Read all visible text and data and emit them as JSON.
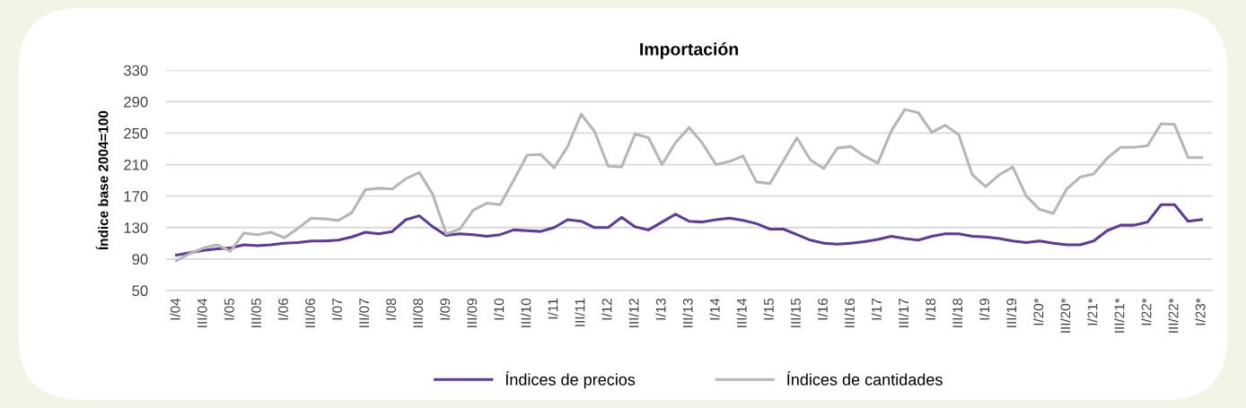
{
  "chart_data": {
    "type": "line",
    "title": "Importación",
    "ylabel": "Índice base 2004=100",
    "categories": [
      "I/04",
      null,
      "III/04",
      null,
      "I/05",
      null,
      "III/05",
      null,
      "I/06",
      null,
      "III/06",
      null,
      "I/07",
      null,
      "III/07",
      null,
      "I/08",
      null,
      "III/08",
      null,
      "I/09",
      null,
      "III/09",
      null,
      "I/10",
      null,
      "III/10",
      null,
      "I/11",
      null,
      "III/11",
      null,
      "I/12",
      null,
      "III/12",
      null,
      "I/13",
      null,
      "III/13",
      null,
      "I/14",
      null,
      "III/14",
      null,
      "I/15",
      null,
      "III/15",
      null,
      "I/16",
      null,
      "III/16",
      null,
      "I/17",
      null,
      "III/17",
      null,
      "I/18",
      null,
      "III/18",
      null,
      "I/19",
      null,
      "III/19",
      null,
      "I/20*",
      null,
      "III/20*",
      null,
      "I/21*",
      null,
      "III/21*",
      null,
      "I/22*",
      null,
      "III/22*",
      null,
      "I/23*"
    ],
    "series": [
      {
        "name": "Índices de precios",
        "color": "#5c3b99",
        "values": [
          95,
          98,
          101,
          103,
          104,
          108,
          107,
          108,
          110,
          111,
          113,
          113,
          114,
          118,
          124,
          122,
          125,
          140,
          145,
          131,
          120,
          122,
          121,
          119,
          121,
          127,
          126,
          125,
          130,
          140,
          138,
          130,
          130,
          143,
          131,
          127,
          137,
          147,
          138,
          137,
          140,
          142,
          139,
          135,
          128,
          128,
          121,
          114,
          110,
          109,
          110,
          112,
          115,
          119,
          116,
          114,
          119,
          122,
          122,
          119,
          118,
          116,
          113,
          111,
          113,
          110,
          108,
          108,
          113,
          126,
          133,
          133,
          137,
          159,
          159,
          138,
          140
        ]
      },
      {
        "name": "Índices de cantidades",
        "color": "#b5b7b6",
        "values": [
          88,
          97,
          104,
          108,
          100,
          123,
          121,
          124,
          117,
          129,
          142,
          141,
          139,
          149,
          178,
          180,
          179,
          192,
          200,
          172,
          122,
          128,
          152,
          161,
          159,
          190,
          222,
          223,
          206,
          233,
          274,
          252,
          208,
          207,
          249,
          244,
          210,
          238,
          257,
          237,
          210,
          214,
          221,
          188,
          186,
          215,
          244,
          216,
          205,
          231,
          233,
          221,
          212,
          253,
          280,
          276,
          251,
          260,
          248,
          197,
          182,
          197,
          207,
          170,
          153,
          148,
          179,
          194,
          198,
          218,
          232,
          232,
          234,
          262,
          261,
          219,
          219
        ]
      }
    ],
    "ylim": [
      50,
      330
    ],
    "yticks": [
      50,
      90,
      130,
      170,
      210,
      250,
      290,
      330
    ],
    "grid": "y",
    "legend": "bottom",
    "marker": "none",
    "line_style": "solid"
  }
}
